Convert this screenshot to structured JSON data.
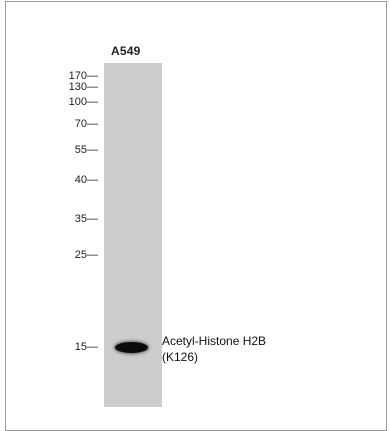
{
  "lane_label": "A549",
  "markers": [
    "170—",
    "130—",
    "100—",
    "70—",
    "55—",
    "40—",
    "35—",
    "25—",
    "15—"
  ],
  "band_label": {
    "line1": "Acetyl-Histone H2B",
    "line2": "(K126)"
  }
}
